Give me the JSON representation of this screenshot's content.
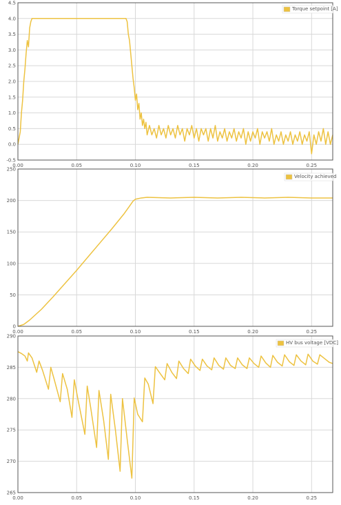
{
  "colors": {
    "series": "#edc240",
    "grid": "#d8d8d8",
    "frame": "#545454"
  },
  "chart_data": [
    {
      "type": "line",
      "legend_position": "top-right",
      "grid": true,
      "series": [
        {
          "name": "Torque setpoint [A]",
          "points": [
            [
              0.0,
              0.0
            ],
            [
              0.002,
              0.4
            ],
            [
              0.003,
              1.0
            ],
            [
              0.004,
              1.4
            ],
            [
              0.005,
              2.0
            ],
            [
              0.006,
              2.4
            ],
            [
              0.007,
              2.9
            ],
            [
              0.008,
              3.3
            ],
            [
              0.009,
              3.1
            ],
            [
              0.01,
              3.7
            ],
            [
              0.011,
              3.9
            ],
            [
              0.012,
              4.0
            ],
            [
              0.03,
              4.0
            ],
            [
              0.05,
              4.0
            ],
            [
              0.07,
              4.0
            ],
            [
              0.092,
              4.0
            ],
            [
              0.093,
              3.9
            ],
            [
              0.094,
              3.5
            ],
            [
              0.095,
              3.3
            ],
            [
              0.096,
              2.9
            ],
            [
              0.097,
              2.5
            ],
            [
              0.098,
              2.1
            ],
            [
              0.099,
              1.8
            ],
            [
              0.1,
              1.4
            ],
            [
              0.101,
              1.6
            ],
            [
              0.102,
              1.1
            ],
            [
              0.103,
              1.3
            ],
            [
              0.104,
              0.8
            ],
            [
              0.105,
              1.0
            ],
            [
              0.106,
              0.6
            ],
            [
              0.107,
              0.8
            ],
            [
              0.108,
              0.5
            ],
            [
              0.109,
              0.7
            ],
            [
              0.11,
              0.3
            ],
            [
              0.112,
              0.6
            ],
            [
              0.114,
              0.3
            ],
            [
              0.116,
              0.5
            ],
            [
              0.118,
              0.2
            ],
            [
              0.12,
              0.6
            ],
            [
              0.122,
              0.3
            ],
            [
              0.124,
              0.5
            ],
            [
              0.126,
              0.2
            ],
            [
              0.128,
              0.6
            ],
            [
              0.13,
              0.3
            ],
            [
              0.132,
              0.5
            ],
            [
              0.134,
              0.2
            ],
            [
              0.136,
              0.6
            ],
            [
              0.138,
              0.3
            ],
            [
              0.14,
              0.5
            ],
            [
              0.142,
              0.1
            ],
            [
              0.144,
              0.5
            ],
            [
              0.146,
              0.3
            ],
            [
              0.148,
              0.6
            ],
            [
              0.15,
              0.2
            ],
            [
              0.152,
              0.5
            ],
            [
              0.154,
              0.1
            ],
            [
              0.156,
              0.5
            ],
            [
              0.158,
              0.3
            ],
            [
              0.16,
              0.5
            ],
            [
              0.162,
              0.1
            ],
            [
              0.164,
              0.5
            ],
            [
              0.166,
              0.2
            ],
            [
              0.168,
              0.6
            ],
            [
              0.17,
              0.1
            ],
            [
              0.172,
              0.4
            ],
            [
              0.174,
              0.2
            ],
            [
              0.176,
              0.5
            ],
            [
              0.178,
              0.1
            ],
            [
              0.18,
              0.4
            ],
            [
              0.182,
              0.2
            ],
            [
              0.184,
              0.5
            ],
            [
              0.186,
              0.1
            ],
            [
              0.188,
              0.4
            ],
            [
              0.19,
              0.2
            ],
            [
              0.192,
              0.5
            ],
            [
              0.194,
              0.0
            ],
            [
              0.196,
              0.4
            ],
            [
              0.198,
              0.1
            ],
            [
              0.2,
              0.4
            ],
            [
              0.202,
              0.2
            ],
            [
              0.204,
              0.5
            ],
            [
              0.206,
              0.0
            ],
            [
              0.208,
              0.4
            ],
            [
              0.21,
              0.2
            ],
            [
              0.212,
              0.4
            ],
            [
              0.214,
              0.1
            ],
            [
              0.216,
              0.5
            ],
            [
              0.218,
              0.0
            ],
            [
              0.22,
              0.3
            ],
            [
              0.222,
              0.1
            ],
            [
              0.224,
              0.4
            ],
            [
              0.226,
              0.0
            ],
            [
              0.228,
              0.3
            ],
            [
              0.23,
              0.1
            ],
            [
              0.232,
              0.4
            ],
            [
              0.234,
              0.0
            ],
            [
              0.236,
              0.3
            ],
            [
              0.238,
              0.1
            ],
            [
              0.24,
              0.4
            ],
            [
              0.242,
              0.0
            ],
            [
              0.244,
              0.3
            ],
            [
              0.246,
              0.1
            ],
            [
              0.248,
              0.4
            ],
            [
              0.25,
              -0.3
            ],
            [
              0.252,
              0.3
            ],
            [
              0.254,
              0.0
            ],
            [
              0.256,
              0.4
            ],
            [
              0.258,
              0.1
            ],
            [
              0.26,
              0.5
            ],
            [
              0.262,
              0.0
            ],
            [
              0.264,
              0.4
            ],
            [
              0.266,
              0.0
            ],
            [
              0.268,
              0.3
            ]
          ]
        }
      ],
      "xlim": [
        0,
        0.268
      ],
      "ylim": [
        -0.5,
        4.5
      ],
      "xticks": [
        {
          "value": 0.0,
          "label": "0.00"
        },
        {
          "value": 0.05,
          "label": "0.05"
        },
        {
          "value": 0.1,
          "label": "0.10"
        },
        {
          "value": 0.15,
          "label": "0.15"
        },
        {
          "value": 0.2,
          "label": "0.20"
        },
        {
          "value": 0.25,
          "label": "0.25"
        }
      ],
      "yticks": [
        {
          "value": -0.5,
          "label": "-0.5"
        },
        {
          "value": 0.0,
          "label": "0.0"
        },
        {
          "value": 0.5,
          "label": "0.5"
        },
        {
          "value": 1.0,
          "label": "1.0"
        },
        {
          "value": 1.5,
          "label": "1.5"
        },
        {
          "value": 2.0,
          "label": "2.0"
        },
        {
          "value": 2.5,
          "label": "2.5"
        },
        {
          "value": 3.0,
          "label": "3.0"
        },
        {
          "value": 3.5,
          "label": "3.5"
        },
        {
          "value": 4.0,
          "label": "4.0"
        },
        {
          "value": 4.5,
          "label": "4.5"
        }
      ]
    },
    {
      "type": "line",
      "legend_position": "top-right",
      "grid": true,
      "series": [
        {
          "name": "Velocity achieved",
          "points": [
            [
              0.0,
              0
            ],
            [
              0.005,
              3
            ],
            [
              0.01,
              10
            ],
            [
              0.02,
              27
            ],
            [
              0.03,
              47
            ],
            [
              0.04,
              68
            ],
            [
              0.05,
              89
            ],
            [
              0.06,
              111
            ],
            [
              0.07,
              133
            ],
            [
              0.08,
              155
            ],
            [
              0.09,
              178
            ],
            [
              0.095,
              191
            ],
            [
              0.098,
              199
            ],
            [
              0.1,
              202
            ],
            [
              0.105,
              204
            ],
            [
              0.11,
              205
            ],
            [
              0.13,
              204
            ],
            [
              0.15,
              205
            ],
            [
              0.17,
              204
            ],
            [
              0.19,
              205
            ],
            [
              0.21,
              204
            ],
            [
              0.23,
              205
            ],
            [
              0.25,
              204
            ],
            [
              0.268,
              204
            ]
          ]
        }
      ],
      "xlim": [
        0,
        0.268
      ],
      "ylim": [
        0,
        250
      ],
      "xticks": [
        {
          "value": 0.0,
          "label": "0.00"
        },
        {
          "value": 0.05,
          "label": "0.05"
        },
        {
          "value": 0.1,
          "label": "0.10"
        },
        {
          "value": 0.15,
          "label": "0.15"
        },
        {
          "value": 0.2,
          "label": "0.20"
        },
        {
          "value": 0.25,
          "label": "0.25"
        }
      ],
      "yticks": [
        {
          "value": 0,
          "label": "0"
        },
        {
          "value": 50,
          "label": "50"
        },
        {
          "value": 100,
          "label": "100"
        },
        {
          "value": 150,
          "label": "150"
        },
        {
          "value": 200,
          "label": "200"
        },
        {
          "value": 250,
          "label": "250"
        }
      ]
    },
    {
      "type": "line",
      "legend_position": "top-right",
      "grid": true,
      "series": [
        {
          "name": "HV bus voltage [VDC]",
          "points": [
            [
              0.0,
              287.5
            ],
            [
              0.003,
              287.2
            ],
            [
              0.006,
              286.8
            ],
            [
              0.008,
              286.0
            ],
            [
              0.009,
              287.3
            ],
            [
              0.012,
              286.5
            ],
            [
              0.016,
              284.2
            ],
            [
              0.018,
              286.0
            ],
            [
              0.021,
              284.5
            ],
            [
              0.026,
              281.5
            ],
            [
              0.028,
              285.0
            ],
            [
              0.031,
              283.0
            ],
            [
              0.036,
              279.5
            ],
            [
              0.038,
              284.0
            ],
            [
              0.042,
              281.5
            ],
            [
              0.046,
              277.0
            ],
            [
              0.048,
              283.0
            ],
            [
              0.051,
              280.0
            ],
            [
              0.057,
              274.3
            ],
            [
              0.059,
              282.0
            ],
            [
              0.062,
              278.5
            ],
            [
              0.067,
              272.2
            ],
            [
              0.069,
              281.3
            ],
            [
              0.073,
              276.5
            ],
            [
              0.077,
              270.3
            ],
            [
              0.079,
              280.7
            ],
            [
              0.083,
              275.0
            ],
            [
              0.087,
              268.4
            ],
            [
              0.089,
              280.0
            ],
            [
              0.093,
              273.5
            ],
            [
              0.097,
              267.3
            ],
            [
              0.099,
              280.1
            ],
            [
              0.102,
              277.5
            ],
            [
              0.106,
              276.3
            ],
            [
              0.108,
              283.3
            ],
            [
              0.111,
              282.3
            ],
            [
              0.115,
              279.2
            ],
            [
              0.117,
              285.1
            ],
            [
              0.12,
              284.3
            ],
            [
              0.125,
              283.0
            ],
            [
              0.127,
              285.6
            ],
            [
              0.131,
              284.2
            ],
            [
              0.135,
              283.2
            ],
            [
              0.137,
              286.0
            ],
            [
              0.141,
              284.8
            ],
            [
              0.145,
              284.0
            ],
            [
              0.147,
              286.3
            ],
            [
              0.151,
              285.2
            ],
            [
              0.155,
              284.5
            ],
            [
              0.157,
              286.3
            ],
            [
              0.161,
              285.2
            ],
            [
              0.165,
              284.6
            ],
            [
              0.167,
              286.5
            ],
            [
              0.171,
              285.3
            ],
            [
              0.175,
              284.7
            ],
            [
              0.177,
              286.5
            ],
            [
              0.181,
              285.3
            ],
            [
              0.185,
              284.8
            ],
            [
              0.187,
              286.5
            ],
            [
              0.191,
              285.4
            ],
            [
              0.195,
              284.8
            ],
            [
              0.197,
              286.5
            ],
            [
              0.201,
              285.6
            ],
            [
              0.205,
              285.0
            ],
            [
              0.207,
              286.8
            ],
            [
              0.211,
              285.7
            ],
            [
              0.215,
              285.0
            ],
            [
              0.217,
              286.9
            ],
            [
              0.221,
              285.8
            ],
            [
              0.225,
              285.2
            ],
            [
              0.227,
              287.0
            ],
            [
              0.231,
              285.9
            ],
            [
              0.235,
              285.3
            ],
            [
              0.237,
              287.0
            ],
            [
              0.241,
              286.0
            ],
            [
              0.245,
              285.4
            ],
            [
              0.247,
              287.1
            ],
            [
              0.251,
              286.0
            ],
            [
              0.255,
              285.5
            ],
            [
              0.257,
              287.0
            ],
            [
              0.261,
              286.4
            ],
            [
              0.265,
              285.8
            ],
            [
              0.268,
              285.6
            ]
          ]
        }
      ],
      "xlim": [
        0,
        0.268
      ],
      "ylim": [
        265,
        290
      ],
      "xticks": [
        {
          "value": 0.0,
          "label": "0.00"
        },
        {
          "value": 0.05,
          "label": "0.05"
        },
        {
          "value": 0.1,
          "label": "0.10"
        },
        {
          "value": 0.15,
          "label": "0.15"
        },
        {
          "value": 0.2,
          "label": "0.20"
        },
        {
          "value": 0.25,
          "label": "0.25"
        }
      ],
      "yticks": [
        {
          "value": 265,
          "label": "265"
        },
        {
          "value": 270,
          "label": "270"
        },
        {
          "value": 275,
          "label": "275"
        },
        {
          "value": 280,
          "label": "280"
        },
        {
          "value": 285,
          "label": "285"
        },
        {
          "value": 290,
          "label": "290"
        }
      ]
    }
  ]
}
